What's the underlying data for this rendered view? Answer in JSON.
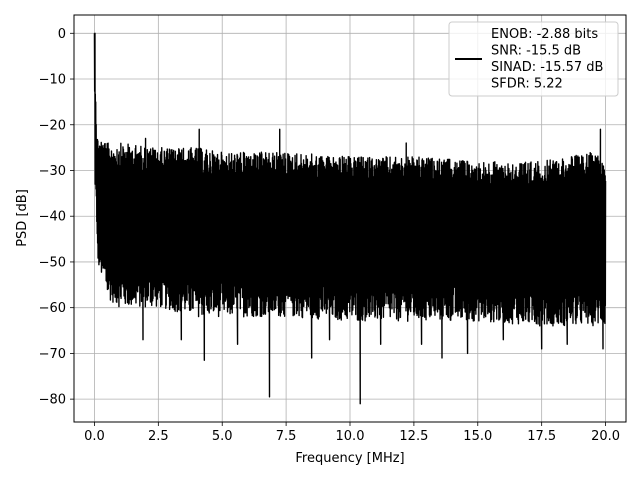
{
  "chart_data": {
    "type": "line",
    "title": "",
    "xlabel": "Frequency [MHz]",
    "ylabel": "PSD [dB]",
    "xlim": [
      -0.8,
      20.8
    ],
    "ylim": [
      -85,
      4
    ],
    "xticks": [
      0.0,
      2.5,
      5.0,
      7.5,
      10.0,
      12.5,
      15.0,
      17.5,
      20.0
    ],
    "xtick_labels": [
      "0.0",
      "2.5",
      "5.0",
      "7.5",
      "10.0",
      "12.5",
      "15.0",
      "17.5",
      "20.0"
    ],
    "yticks": [
      0,
      -10,
      -20,
      -30,
      -40,
      -50,
      -60,
      -70,
      -80
    ],
    "ytick_labels": [
      "0",
      "−10",
      "−20",
      "−30",
      "−40",
      "−50",
      "−60",
      "−70",
      "−80"
    ],
    "grid": true,
    "legend_position": "top-right",
    "series": [
      {
        "name": "ENOB: -2.88 bits\nSNR: -15.5 dB\nSINAD: -15.57 dB\nSFDR: 5.22",
        "legend_lines": [
          "ENOB: -2.88 bits",
          "SNR: -15.5 dB",
          "SINAD: -15.57 dB",
          "SFDR: 5.22"
        ],
        "color": "#000000",
        "envelope_x": [
          0.0,
          0.1,
          0.5,
          1.0,
          2.5,
          4.0,
          5.0,
          7.5,
          10.0,
          12.5,
          15.0,
          17.5,
          19.5,
          20.0
        ],
        "envelope_upper": [
          0,
          -22,
          -24,
          -24,
          -25,
          -25,
          -26,
          -26,
          -27,
          -27,
          -28,
          -28,
          -26,
          -27
        ],
        "envelope_lower": [
          -15,
          -50,
          -58,
          -60,
          -60,
          -62,
          -62,
          -62,
          -63,
          -63,
          -63,
          -64,
          -64,
          -64
        ],
        "spikes_up": [
          [
            0.02,
            0
          ],
          [
            4.1,
            -21
          ],
          [
            7.25,
            -21
          ],
          [
            19.8,
            -21
          ],
          [
            12.2,
            -24
          ],
          [
            2.0,
            -23
          ]
        ],
        "spikes_down": [
          [
            6.85,
            -79.5
          ],
          [
            10.4,
            -81
          ],
          [
            4.3,
            -71.5
          ],
          [
            8.5,
            -71
          ],
          [
            13.6,
            -71
          ],
          [
            14.6,
            -70
          ],
          [
            17.5,
            -69
          ],
          [
            1.9,
            -67
          ],
          [
            3.4,
            -67
          ],
          [
            5.6,
            -68
          ],
          [
            9.2,
            -67
          ],
          [
            11.2,
            -68
          ],
          [
            12.8,
            -68
          ],
          [
            16.0,
            -67
          ],
          [
            18.5,
            -68
          ],
          [
            19.9,
            -69
          ]
        ]
      }
    ]
  }
}
